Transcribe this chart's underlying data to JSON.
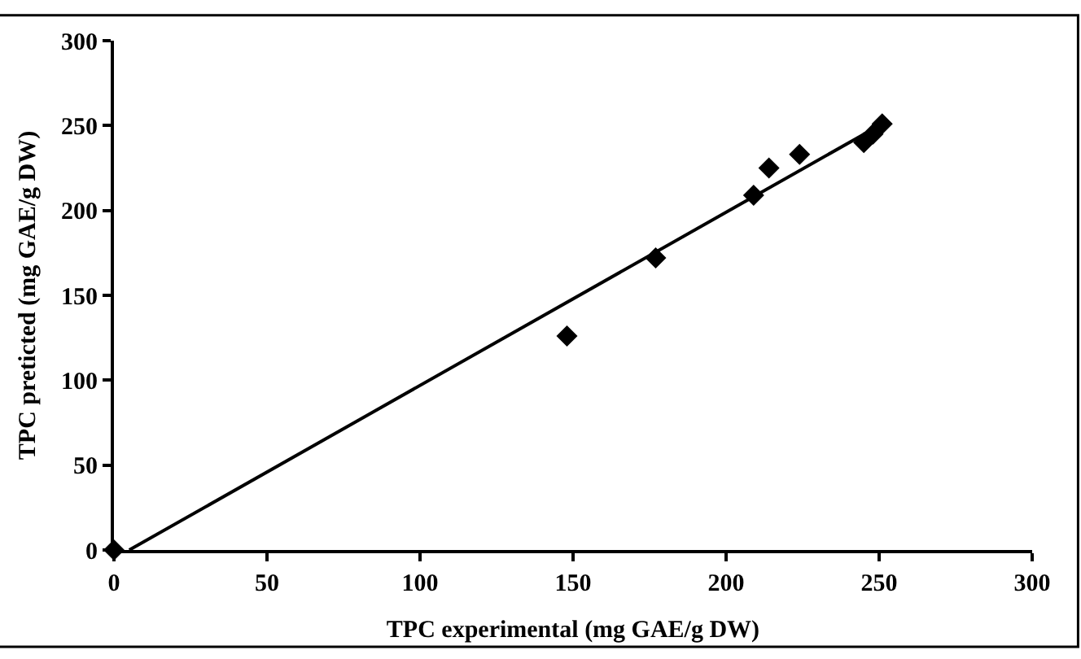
{
  "chart_data": {
    "type": "scatter",
    "xlabel": "TPC experimental (mg GAE/g DW)",
    "ylabel": "TPC preticted (mg GAE/g DW)",
    "xlim": [
      0,
      300
    ],
    "ylim": [
      0,
      300
    ],
    "xticks": [
      0,
      50,
      100,
      150,
      200,
      250,
      300
    ],
    "yticks": [
      0,
      50,
      100,
      150,
      200,
      250,
      300
    ],
    "grid": false,
    "legend": false,
    "series": [
      {
        "color": "#000000",
        "marker": "diamond",
        "x": [
          0,
          148,
          177,
          209,
          214,
          224,
          245,
          248,
          251
        ],
        "values": [
          0,
          126,
          172,
          209,
          225,
          233,
          240,
          245,
          251
        ]
      },
      {
        "type": "line",
        "color": "#000000",
        "line_style": "solid",
        "x": [
          5,
          252
        ],
        "values": [
          0,
          252
        ]
      }
    ]
  }
}
